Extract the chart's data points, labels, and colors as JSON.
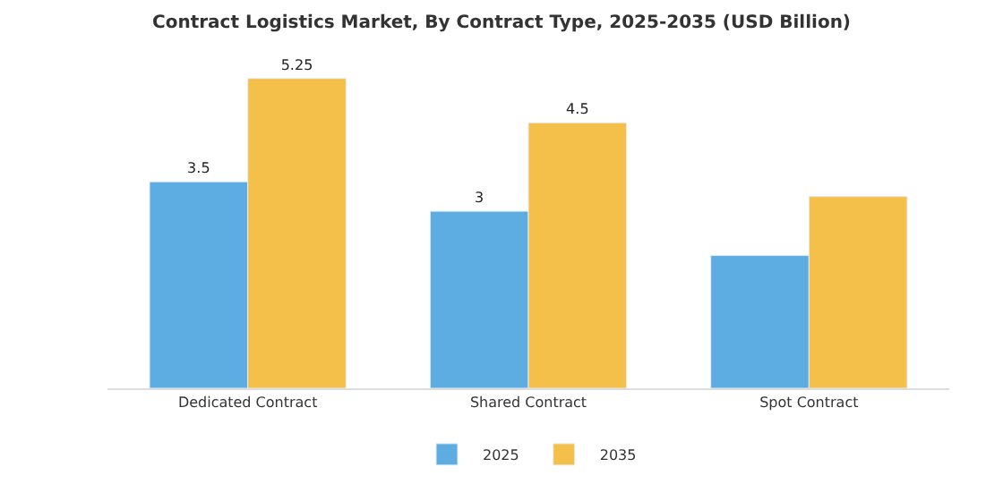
{
  "chart_data": {
    "type": "bar",
    "title": "Contract Logistics Market, By Contract Type, 2025-2035 (USD Billion)",
    "categories": [
      "Dedicated Contract",
      "Shared Contract",
      "Spot Contract"
    ],
    "series": [
      {
        "name": "2025",
        "color": "#5dade2",
        "values": [
          3.5,
          3,
          2.25
        ],
        "value_labels": [
          "3.5",
          "3",
          null
        ]
      },
      {
        "name": "2035",
        "color": "#f5c04a",
        "values": [
          5.25,
          4.5,
          3.25
        ],
        "value_labels": [
          "5.25",
          "4.5",
          null
        ]
      }
    ],
    "legend": "bottom"
  }
}
